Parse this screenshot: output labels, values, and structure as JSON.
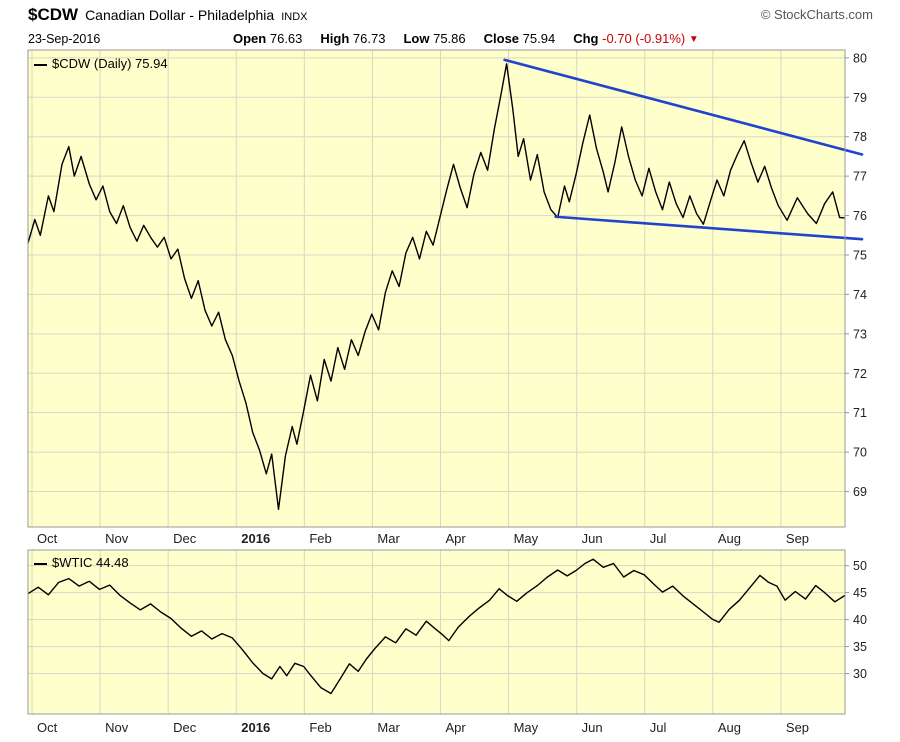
{
  "header": {
    "symbol": "$CDW",
    "name": "Canadian Dollar - Philadelphia",
    "exchange": "INDX",
    "copyright": "© StockCharts.com",
    "date": "23-Sep-2016",
    "quote": {
      "open_label": "Open",
      "open": "76.63",
      "high_label": "High",
      "high": "76.73",
      "low_label": "Low",
      "low": "75.86",
      "close_label": "Close",
      "close": "75.94",
      "chg_label": "Chg",
      "chg": "-0.70 (-0.91%)"
    }
  },
  "icons": {
    "down_arrow": "▼"
  },
  "colors": {
    "plot_bg": "#FFFFCC",
    "grid": "#D8D8C4",
    "border": "#999999",
    "price_line": "#000000",
    "trendline": "#2244CC",
    "negative": "#CC0000",
    "label": "#222222"
  },
  "months": [
    {
      "label": "Oct",
      "bold": false
    },
    {
      "label": "Nov",
      "bold": false
    },
    {
      "label": "Dec",
      "bold": false
    },
    {
      "label": "2016",
      "bold": true
    },
    {
      "label": "Feb",
      "bold": false
    },
    {
      "label": "Mar",
      "bold": false
    },
    {
      "label": "Apr",
      "bold": false
    },
    {
      "label": "May",
      "bold": false
    },
    {
      "label": "Jun",
      "bold": false
    },
    {
      "label": "Jul",
      "bold": false
    },
    {
      "label": "Aug",
      "bold": false
    },
    {
      "label": "Sep",
      "bold": false
    }
  ],
  "chart_data": [
    {
      "type": "line",
      "title": "$CDW (Daily)",
      "legend": "$CDW (Daily) 75.94",
      "last_value": 75.94,
      "xlabel": "",
      "ylabel": "",
      "ylim": [
        68.1,
        80.2
      ],
      "yticks": [
        69,
        70,
        71,
        72,
        73,
        74,
        75,
        76,
        77,
        78,
        79,
        80
      ],
      "x_unit": "months from Oct-2015 (0) to late Sep-2016 (12)",
      "grid": true,
      "series": [
        {
          "name": "$CDW daily close",
          "color": "#000000",
          "points": [
            [
              0,
              75.3
            ],
            [
              0.1,
              75.9
            ],
            [
              0.18,
              75.5
            ],
            [
              0.3,
              76.5
            ],
            [
              0.38,
              76.1
            ],
            [
              0.5,
              77.3
            ],
            [
              0.6,
              77.75
            ],
            [
              0.68,
              77.0
            ],
            [
              0.78,
              77.5
            ],
            [
              0.9,
              76.8
            ],
            [
              1.0,
              76.4
            ],
            [
              1.1,
              76.75
            ],
            [
              1.2,
              76.1
            ],
            [
              1.3,
              75.8
            ],
            [
              1.4,
              76.25
            ],
            [
              1.5,
              75.7
            ],
            [
              1.6,
              75.35
            ],
            [
              1.7,
              75.75
            ],
            [
              1.8,
              75.45
            ],
            [
              1.9,
              75.2
            ],
            [
              2.0,
              75.45
            ],
            [
              2.1,
              74.9
            ],
            [
              2.2,
              75.15
            ],
            [
              2.3,
              74.4
            ],
            [
              2.4,
              73.9
            ],
            [
              2.5,
              74.35
            ],
            [
              2.6,
              73.6
            ],
            [
              2.7,
              73.2
            ],
            [
              2.8,
              73.55
            ],
            [
              2.9,
              72.85
            ],
            [
              3.0,
              72.45
            ],
            [
              3.1,
              71.8
            ],
            [
              3.2,
              71.25
            ],
            [
              3.3,
              70.5
            ],
            [
              3.4,
              70.05
            ],
            [
              3.5,
              69.45
            ],
            [
              3.58,
              69.95
            ],
            [
              3.68,
              68.55
            ],
            [
              3.78,
              69.9
            ],
            [
              3.88,
              70.65
            ],
            [
              3.95,
              70.2
            ],
            [
              4.05,
              71.05
            ],
            [
              4.15,
              71.95
            ],
            [
              4.25,
              71.3
            ],
            [
              4.35,
              72.35
            ],
            [
              4.45,
              71.8
            ],
            [
              4.55,
              72.65
            ],
            [
              4.65,
              72.1
            ],
            [
              4.75,
              72.85
            ],
            [
              4.85,
              72.45
            ],
            [
              4.95,
              73.05
            ],
            [
              5.05,
              73.5
            ],
            [
              5.15,
              73.1
            ],
            [
              5.25,
              74.05
            ],
            [
              5.35,
              74.6
            ],
            [
              5.45,
              74.2
            ],
            [
              5.55,
              75.05
            ],
            [
              5.65,
              75.45
            ],
            [
              5.75,
              74.9
            ],
            [
              5.85,
              75.6
            ],
            [
              5.95,
              75.25
            ],
            [
              6.05,
              75.95
            ],
            [
              6.15,
              76.65
            ],
            [
              6.25,
              77.3
            ],
            [
              6.35,
              76.7
            ],
            [
              6.45,
              76.2
            ],
            [
              6.55,
              77.05
            ],
            [
              6.65,
              77.6
            ],
            [
              6.75,
              77.15
            ],
            [
              6.85,
              78.2
            ],
            [
              6.95,
              79.1
            ],
            [
              7.03,
              79.85
            ],
            [
              7.12,
              78.7
            ],
            [
              7.2,
              77.5
            ],
            [
              7.28,
              77.95
            ],
            [
              7.38,
              76.9
            ],
            [
              7.48,
              77.55
            ],
            [
              7.58,
              76.6
            ],
            [
              7.68,
              76.15
            ],
            [
              7.78,
              75.95
            ],
            [
              7.88,
              76.75
            ],
            [
              7.95,
              76.35
            ],
            [
              8.05,
              77.05
            ],
            [
              8.15,
              77.85
            ],
            [
              8.25,
              78.55
            ],
            [
              8.35,
              77.7
            ],
            [
              8.45,
              77.1
            ],
            [
              8.52,
              76.6
            ],
            [
              8.62,
              77.35
            ],
            [
              8.72,
              78.25
            ],
            [
              8.82,
              77.5
            ],
            [
              8.92,
              76.9
            ],
            [
              9.02,
              76.5
            ],
            [
              9.12,
              77.2
            ],
            [
              9.22,
              76.6
            ],
            [
              9.32,
              76.15
            ],
            [
              9.42,
              76.85
            ],
            [
              9.52,
              76.3
            ],
            [
              9.62,
              75.95
            ],
            [
              9.72,
              76.5
            ],
            [
              9.82,
              76.05
            ],
            [
              9.92,
              75.78
            ],
            [
              10.02,
              76.35
            ],
            [
              10.12,
              76.9
            ],
            [
              10.22,
              76.5
            ],
            [
              10.32,
              77.15
            ],
            [
              10.42,
              77.55
            ],
            [
              10.52,
              77.9
            ],
            [
              10.62,
              77.35
            ],
            [
              10.72,
              76.85
            ],
            [
              10.82,
              77.25
            ],
            [
              10.92,
              76.7
            ],
            [
              11.02,
              76.25
            ],
            [
              11.15,
              75.88
            ],
            [
              11.3,
              76.45
            ],
            [
              11.45,
              76.05
            ],
            [
              11.58,
              75.8
            ],
            [
              11.7,
              76.3
            ],
            [
              11.82,
              76.6
            ],
            [
              11.92,
              75.95
            ],
            [
              12,
              75.94
            ]
          ]
        }
      ],
      "trendlines": [
        {
          "name": "upper-trendline",
          "from": [
            7.0,
            79.95
          ],
          "to": [
            12.25,
            77.55
          ],
          "color": "#2244CC"
        },
        {
          "name": "lower-trendline",
          "from": [
            7.75,
            75.97
          ],
          "to": [
            12.25,
            75.4
          ],
          "color": "#2244CC"
        }
      ]
    },
    {
      "type": "line",
      "title": "$WTIC",
      "legend": "$WTIC 44.48",
      "last_value": 44.48,
      "xlabel": "",
      "ylabel": "",
      "ylim": [
        22.5,
        52.9
      ],
      "yticks": [
        30,
        35,
        40,
        45,
        50
      ],
      "x_unit": "months from Oct-2015 (0) to late Sep-2016 (12)",
      "grid": true,
      "series": [
        {
          "name": "$WTIC daily close",
          "color": "#000000",
          "points": [
            [
              0,
              44.8
            ],
            [
              0.15,
              46.0
            ],
            [
              0.3,
              44.6
            ],
            [
              0.45,
              46.9
            ],
            [
              0.6,
              47.6
            ],
            [
              0.75,
              46.2
            ],
            [
              0.9,
              47.1
            ],
            [
              1.05,
              45.6
            ],
            [
              1.2,
              46.4
            ],
            [
              1.35,
              44.5
            ],
            [
              1.5,
              43.1
            ],
            [
              1.65,
              41.8
            ],
            [
              1.8,
              42.9
            ],
            [
              1.95,
              41.4
            ],
            [
              2.1,
              40.2
            ],
            [
              2.25,
              38.4
            ],
            [
              2.4,
              36.9
            ],
            [
              2.55,
              37.9
            ],
            [
              2.7,
              36.4
            ],
            [
              2.85,
              37.4
            ],
            [
              3.0,
              36.6
            ],
            [
              3.15,
              34.4
            ],
            [
              3.3,
              32.0
            ],
            [
              3.45,
              30.0
            ],
            [
              3.58,
              29.0
            ],
            [
              3.7,
              31.3
            ],
            [
              3.8,
              29.6
            ],
            [
              3.92,
              31.9
            ],
            [
              4.05,
              31.3
            ],
            [
              4.15,
              29.7
            ],
            [
              4.3,
              27.4
            ],
            [
              4.45,
              26.3
            ],
            [
              4.6,
              29.3
            ],
            [
              4.72,
              31.8
            ],
            [
              4.85,
              30.4
            ],
            [
              4.97,
              32.7
            ],
            [
              5.1,
              34.7
            ],
            [
              5.25,
              36.8
            ],
            [
              5.4,
              35.7
            ],
            [
              5.55,
              38.3
            ],
            [
              5.7,
              37.1
            ],
            [
              5.85,
              39.7
            ],
            [
              5.97,
              38.4
            ],
            [
              6.08,
              37.3
            ],
            [
              6.18,
              36.1
            ],
            [
              6.32,
              38.6
            ],
            [
              6.48,
              40.6
            ],
            [
              6.62,
              42.1
            ],
            [
              6.78,
              43.6
            ],
            [
              6.92,
              45.7
            ],
            [
              7.05,
              44.4
            ],
            [
              7.18,
              43.4
            ],
            [
              7.32,
              44.9
            ],
            [
              7.48,
              46.3
            ],
            [
              7.62,
              47.8
            ],
            [
              7.78,
              49.2
            ],
            [
              7.92,
              48.1
            ],
            [
              8.05,
              49.1
            ],
            [
              8.18,
              50.4
            ],
            [
              8.3,
              51.2
            ],
            [
              8.45,
              49.7
            ],
            [
              8.6,
              50.4
            ],
            [
              8.75,
              47.9
            ],
            [
              8.9,
              49.1
            ],
            [
              9.05,
              48.3
            ],
            [
              9.18,
              46.7
            ],
            [
              9.32,
              45.1
            ],
            [
              9.47,
              46.2
            ],
            [
              9.62,
              44.4
            ],
            [
              9.77,
              42.9
            ],
            [
              9.92,
              41.4
            ],
            [
              10.05,
              40.1
            ],
            [
              10.15,
              39.5
            ],
            [
              10.3,
              41.9
            ],
            [
              10.45,
              43.6
            ],
            [
              10.6,
              45.9
            ],
            [
              10.75,
              48.2
            ],
            [
              10.88,
              46.9
            ],
            [
              11.0,
              46.2
            ],
            [
              11.12,
              43.6
            ],
            [
              11.27,
              45.2
            ],
            [
              11.42,
              43.8
            ],
            [
              11.57,
              46.3
            ],
            [
              11.7,
              45.0
            ],
            [
              11.85,
              43.3
            ],
            [
              12,
              44.48
            ]
          ]
        }
      ],
      "trendlines": []
    }
  ]
}
